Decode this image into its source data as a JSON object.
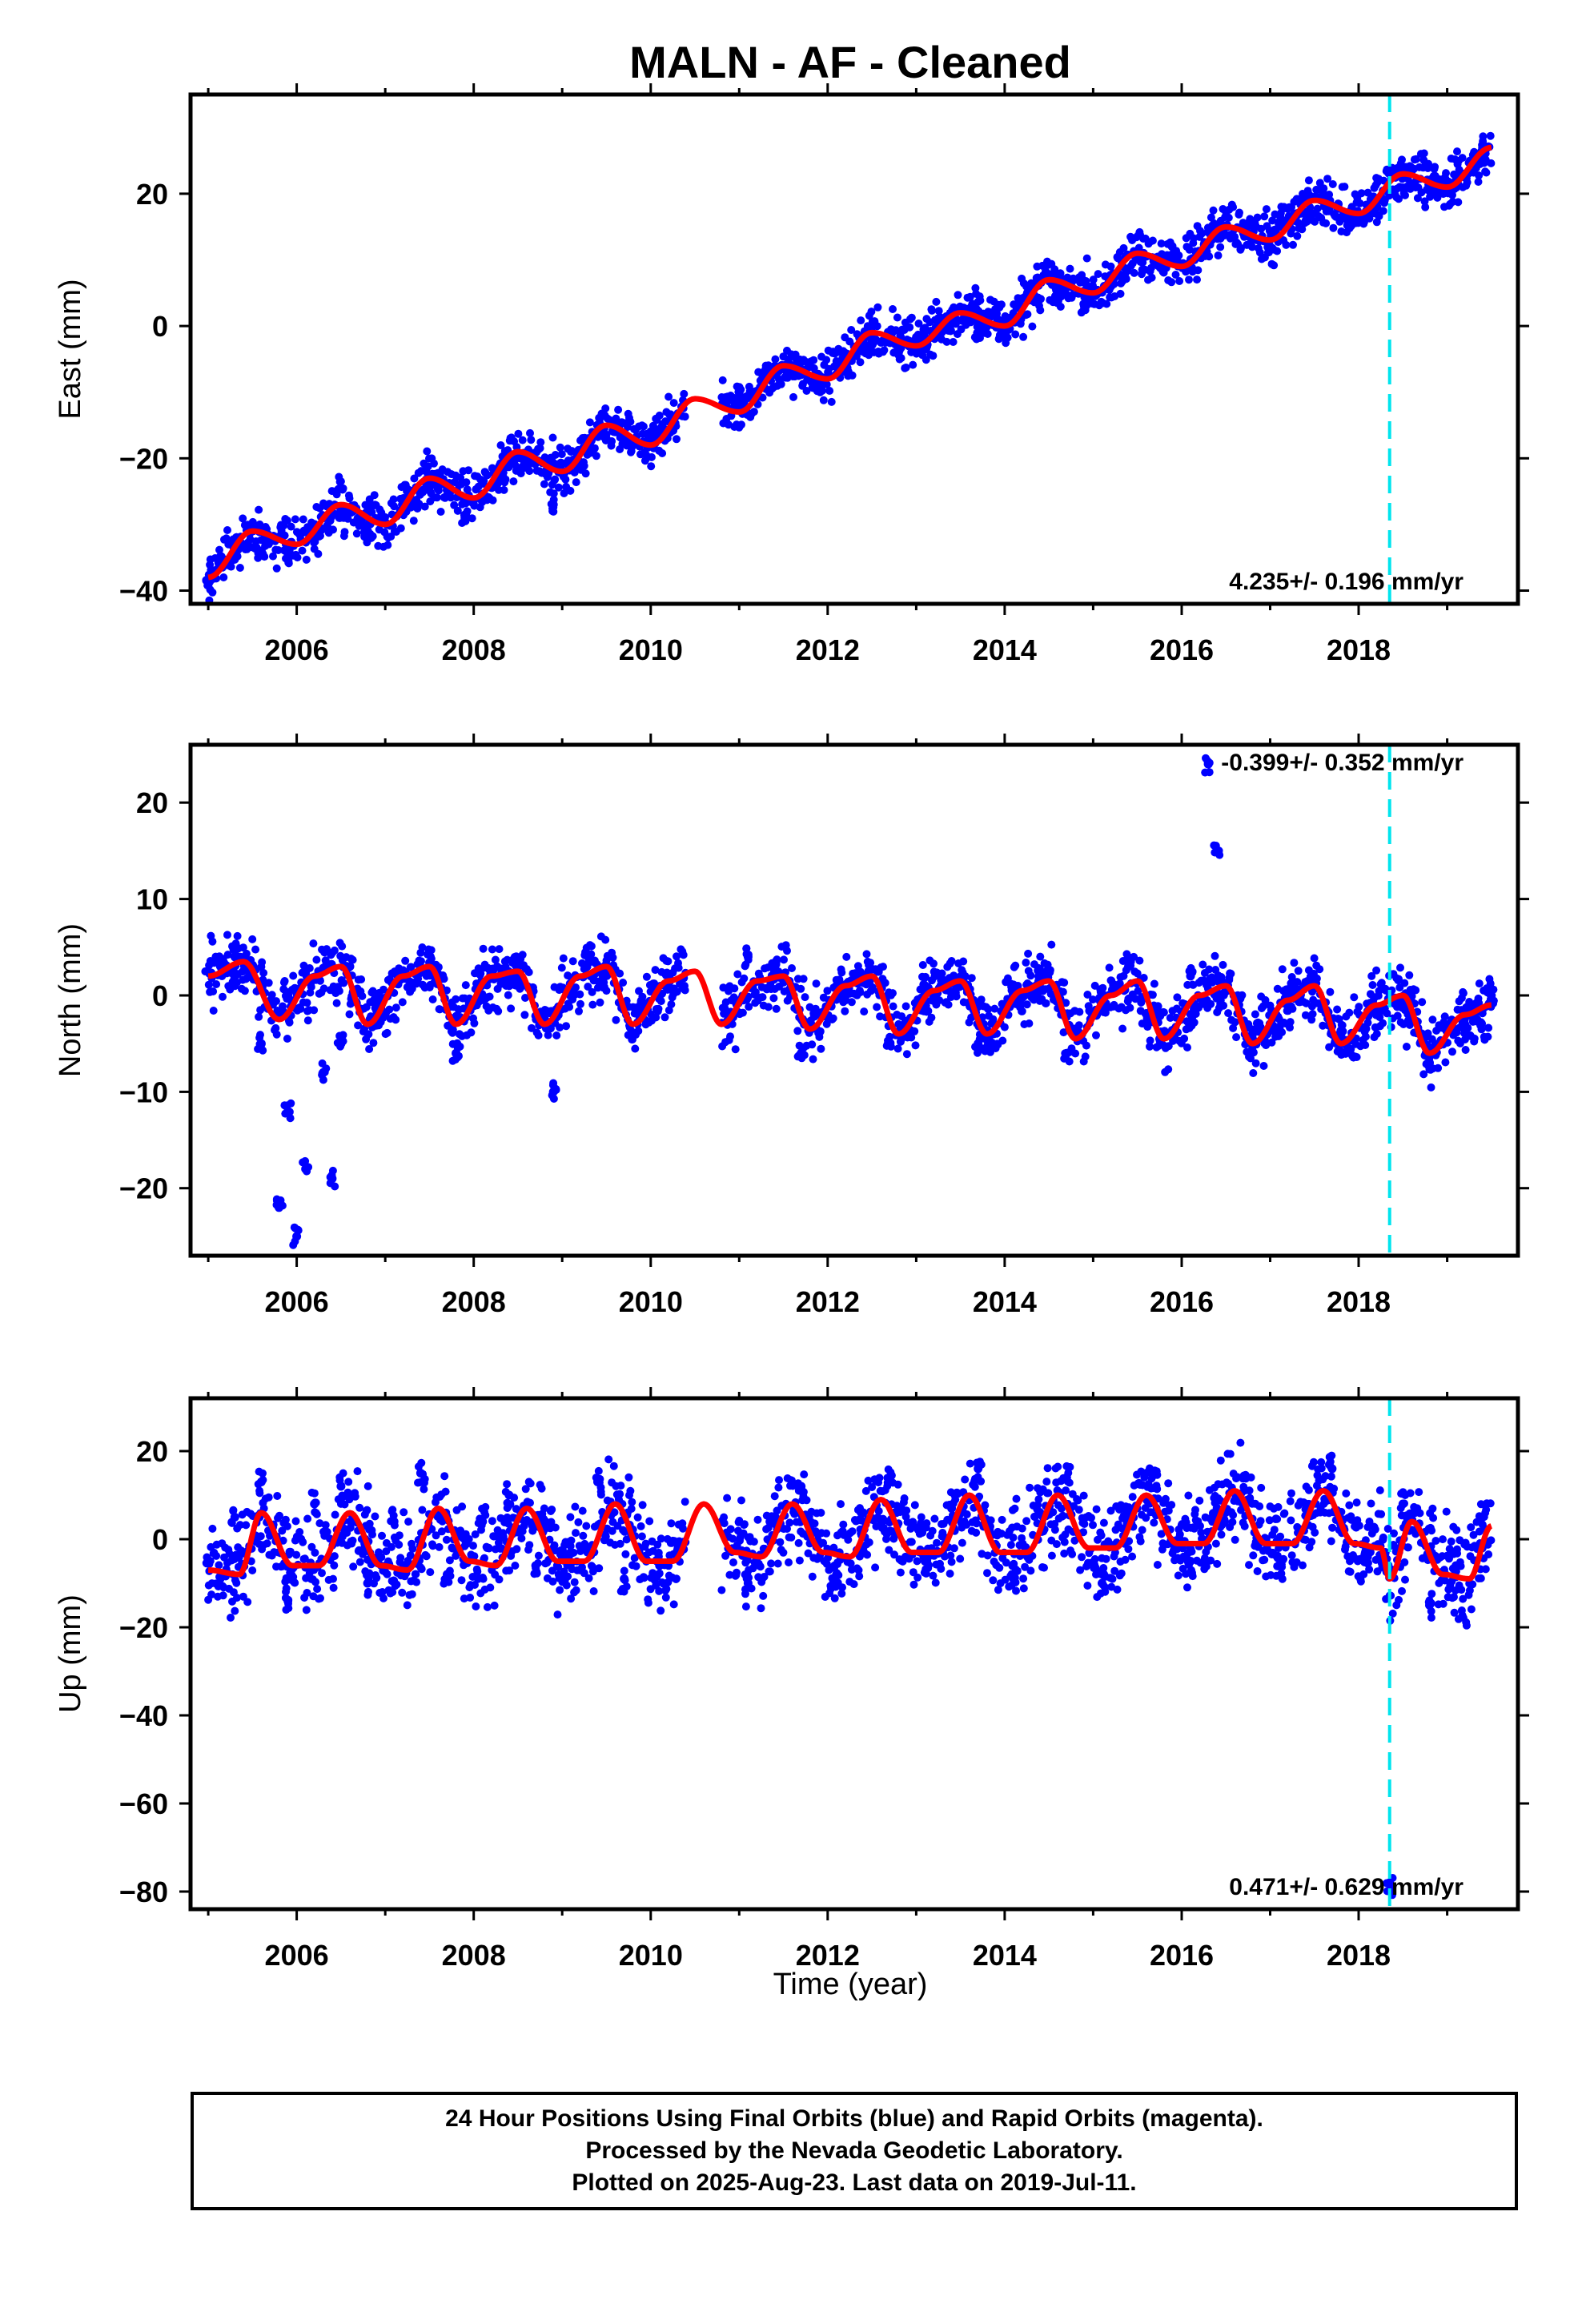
{
  "title": "MALN  - AF - Cleaned",
  "xlabel": "Time (year)",
  "x_ticks": [
    2006,
    2008,
    2010,
    2012,
    2014,
    2016,
    2018
  ],
  "caption": {
    "line1": "24 Hour Positions Using Final Orbits (blue) and Rapid Orbits (magenta).",
    "line2": "Processed by the Nevada Geodetic Laboratory.",
    "line3": "Plotted on 2025-Aug-23. Last data on 2019-Jul-11."
  },
  "colors": {
    "points": "#0000ff",
    "model": "#ff0000",
    "event_line": "#00e5ee",
    "frame": "#000000"
  },
  "chart_data": [
    {
      "type": "scatter",
      "ylabel": "East (mm)",
      "rate_label": "4.235+/- 0.196 mm/yr",
      "rate_position": "bottom-right",
      "xlim": [
        2004.8,
        2019.8
      ],
      "ylim": [
        -42,
        35
      ],
      "y_ticks": [
        -40,
        -20,
        0,
        20
      ],
      "event_line_x": 2018.35,
      "gaps": [
        [
          2010.4,
          2010.8
        ]
      ],
      "series": [
        {
          "kind": "model",
          "x": [
            2005.0,
            2005.5,
            2006.0,
            2006.5,
            2007.0,
            2007.5,
            2008.0,
            2008.5,
            2009.0,
            2009.5,
            2010.0,
            2010.5,
            2011.0,
            2011.5,
            2012.0,
            2012.5,
            2013.0,
            2013.5,
            2014.0,
            2014.5,
            2015.0,
            2015.5,
            2016.0,
            2016.5,
            2017.0,
            2017.5,
            2018.0,
            2018.5,
            2019.0,
            2019.5
          ],
          "y": [
            -38,
            -31,
            -33,
            -27,
            -30,
            -23,
            -26,
            -19,
            -22,
            -15,
            -18,
            -11,
            -13,
            -6,
            -8,
            -1,
            -3,
            2,
            0,
            7,
            5,
            11,
            9,
            15,
            13,
            19,
            17,
            23,
            21,
            27
          ]
        },
        {
          "kind": "observations",
          "x": [
            2005.0,
            2005.3,
            2005.6,
            2005.9,
            2006.2,
            2006.5,
            2006.8,
            2007.2,
            2007.5,
            2007.9,
            2008.3,
            2008.6,
            2008.9,
            2009.3,
            2009.6,
            2010.0,
            2011.0,
            2011.3,
            2011.6,
            2011.9,
            2012.2,
            2012.5,
            2012.8,
            2013.1,
            2013.4,
            2013.7,
            2014.0,
            2014.3,
            2014.6,
            2014.9,
            2015.2,
            2015.5,
            2015.8,
            2016.1,
            2016.4,
            2016.7,
            2017.0,
            2017.3,
            2017.6,
            2017.9,
            2018.2,
            2018.5,
            2018.8,
            2019.1,
            2019.4
          ],
          "y": [
            -39,
            -33,
            -34,
            -35,
            -30,
            -28,
            -31,
            -28,
            -24,
            -29,
            -22,
            -20,
            -27,
            -18,
            -16,
            -17,
            -10,
            -7,
            -6,
            -9,
            -5,
            -2,
            -4,
            -3,
            1,
            -1,
            -1,
            5,
            4,
            3,
            6,
            11,
            9,
            9,
            14,
            14,
            12,
            17,
            20,
            15,
            18,
            23,
            21,
            22,
            27
          ]
        }
      ]
    },
    {
      "type": "scatter",
      "ylabel": "North (mm)",
      "rate_label": "-0.399+/- 0.352 mm/yr",
      "rate_position": "top-right",
      "xlim": [
        2004.8,
        2019.8
      ],
      "ylim": [
        -27,
        26
      ],
      "y_ticks": [
        -20,
        -10,
        0,
        10,
        20
      ],
      "event_line_x": 2018.35,
      "gaps": [
        [
          2010.4,
          2010.8
        ]
      ],
      "series": [
        {
          "kind": "model",
          "x": [
            2005.0,
            2005.4,
            2005.8,
            2006.2,
            2006.5,
            2006.8,
            2007.2,
            2007.5,
            2007.8,
            2008.2,
            2008.5,
            2008.8,
            2009.2,
            2009.5,
            2009.8,
            2010.2,
            2010.5,
            2010.8,
            2011.2,
            2011.5,
            2011.8,
            2012.2,
            2012.5,
            2012.8,
            2013.2,
            2013.5,
            2013.8,
            2014.2,
            2014.5,
            2014.8,
            2015.2,
            2015.5,
            2015.8,
            2016.2,
            2016.5,
            2016.8,
            2017.2,
            2017.5,
            2017.8,
            2018.2,
            2018.5,
            2018.8,
            2019.2,
            2019.5
          ],
          "y": [
            2.0,
            3.5,
            -2.5,
            2.0,
            3.0,
            -3.0,
            2.0,
            3.0,
            -3.0,
            2.0,
            2.5,
            -3.0,
            2.0,
            3.0,
            -3.0,
            1.5,
            2.5,
            -3.0,
            1.5,
            2.0,
            -3.5,
            1.0,
            2.0,
            -4.0,
            0.5,
            1.5,
            -4.0,
            0.5,
            1.5,
            -4.5,
            0.0,
            1.5,
            -4.5,
            0.0,
            1.0,
            -5.0,
            -0.5,
            1.0,
            -5.0,
            -1.0,
            0.0,
            -6.0,
            -2.0,
            -1.0
          ]
        },
        {
          "kind": "observations",
          "x": [
            2005.0,
            2005.3,
            2005.6,
            2005.8,
            2005.9,
            2006.0,
            2006.1,
            2006.3,
            2006.4,
            2006.5,
            2006.6,
            2006.9,
            2007.2,
            2007.5,
            2007.8,
            2008.2,
            2008.5,
            2008.9,
            2009.3,
            2009.5,
            2009.9,
            2011.1,
            2011.4,
            2011.7,
            2012.1,
            2012.4,
            2012.7,
            2013.1,
            2013.4,
            2013.7,
            2014.1,
            2014.4,
            2014.7,
            2015.1,
            2015.4,
            2015.7,
            2016.1,
            2016.3,
            2016.4,
            2016.5,
            2016.8,
            2017.2,
            2017.5,
            2017.8,
            2018.2,
            2018.5,
            2018.8,
            2019.2,
            2019.5
          ],
          "y": [
            2.5,
            4.0,
            -5.0,
            -22.0,
            -12.0,
            -25.0,
            -18.0,
            -8.0,
            -19.0,
            -5.0,
            3.0,
            -1.0,
            2.5,
            3.0,
            -6.0,
            2.0,
            1.0,
            -10.0,
            4.0,
            3.0,
            -1.0,
            4.0,
            2.5,
            -6.0,
            1.0,
            2.0,
            -5.0,
            1.0,
            1.5,
            -5.0,
            0.5,
            2.0,
            -6.0,
            0.0,
            3.0,
            -2.0,
            2.0,
            24.0,
            15.0,
            1.0,
            -4.0,
            -1.0,
            1.0,
            -4.0,
            -2.0,
            -1.0,
            -7.0,
            -3.0,
            0.0
          ]
        }
      ]
    },
    {
      "type": "scatter",
      "ylabel": "Up (mm)",
      "rate_label": "0.471+/- 0.629 mm/yr",
      "rate_position": "bottom-right",
      "xlim": [
        2004.8,
        2019.8
      ],
      "ylim": [
        -84,
        32
      ],
      "y_ticks": [
        -80,
        -60,
        -40,
        -20,
        0,
        20
      ],
      "event_line_x": 2018.35,
      "gaps": [
        [
          2010.4,
          2010.8
        ]
      ],
      "series": [
        {
          "kind": "model",
          "x": [
            2005.0,
            2005.35,
            2005.6,
            2005.95,
            2006.25,
            2006.6,
            2006.95,
            2007.25,
            2007.6,
            2007.95,
            2008.25,
            2008.6,
            2008.95,
            2009.25,
            2009.6,
            2009.95,
            2010.25,
            2010.6,
            2010.95,
            2011.25,
            2011.6,
            2011.95,
            2012.25,
            2012.6,
            2012.95,
            2013.25,
            2013.6,
            2013.95,
            2014.25,
            2014.6,
            2014.95,
            2015.25,
            2015.6,
            2015.95,
            2016.25,
            2016.6,
            2016.95,
            2017.25,
            2017.6,
            2017.95,
            2018.25,
            2018.35,
            2018.6,
            2018.95,
            2019.25,
            2019.5
          ],
          "y": [
            -7,
            -8,
            6,
            -6,
            -6,
            6,
            -6,
            -7,
            7,
            -5,
            -6,
            7,
            -5,
            -5,
            8,
            -5,
            -5,
            8,
            -3,
            -4,
            8,
            -3,
            -4,
            9,
            -3,
            -3,
            10,
            -3,
            -3,
            10,
            -2,
            -2,
            10,
            -1,
            -1,
            11,
            -1,
            -1,
            11,
            -1,
            -2,
            -9,
            4,
            -8,
            -9,
            3
          ]
        },
        {
          "kind": "observations",
          "x": [
            2005.0,
            2005.3,
            2005.6,
            2005.9,
            2006.2,
            2006.5,
            2006.8,
            2007.1,
            2007.4,
            2007.7,
            2008.1,
            2008.4,
            2008.7,
            2009.1,
            2009.4,
            2009.7,
            2010.1,
            2011.1,
            2011.4,
            2011.7,
            2012.1,
            2012.4,
            2012.7,
            2013.1,
            2013.4,
            2013.7,
            2014.1,
            2014.4,
            2014.7,
            2015.1,
            2015.4,
            2015.7,
            2016.1,
            2016.4,
            2016.7,
            2017.1,
            2017.4,
            2017.7,
            2018.1,
            2018.3,
            2018.35,
            2018.5,
            2018.8,
            2019.1,
            2019.4
          ],
          "y": [
            -5,
            5,
            13,
            -14,
            8,
            12,
            -10,
            4,
            15,
            -8,
            4,
            10,
            -6,
            -3,
            13,
            -9,
            -6,
            -10,
            5,
            12,
            -8,
            6,
            14,
            -5,
            7,
            16,
            -9,
            6,
            14,
            -10,
            6,
            15,
            -5,
            7,
            14,
            -6,
            8,
            16,
            -4,
            -3,
            -78,
            8,
            -15,
            -6,
            5
          ]
        }
      ]
    }
  ]
}
